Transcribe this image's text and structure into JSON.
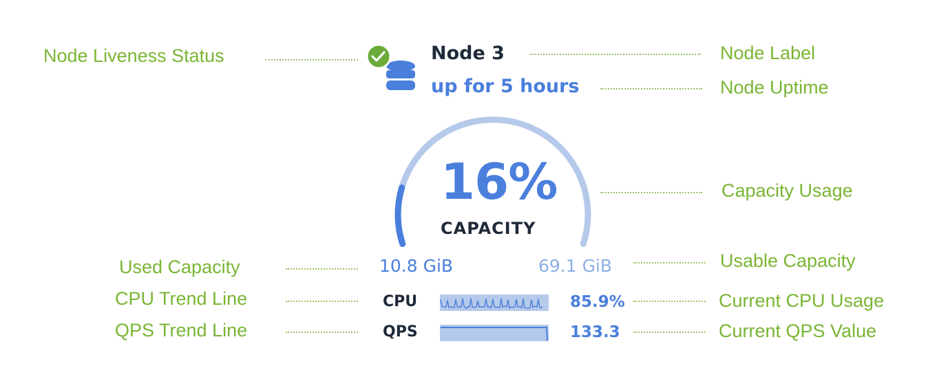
{
  "node": {
    "label": "Node 3",
    "uptime": "up for 5 hours",
    "liveness": "live",
    "icons": {
      "status": "check-circle-icon",
      "node": "database-icon"
    }
  },
  "capacity": {
    "percent_text": "16%",
    "percent": 16,
    "label": "CAPACITY",
    "used": "10.8 GiB",
    "usable": "69.1 GiB"
  },
  "metrics": {
    "cpu": {
      "label": "CPU",
      "value": "85.9%"
    },
    "qps": {
      "label": "QPS",
      "value": "133.3"
    }
  },
  "annotations": {
    "liveness": "Node Liveness Status",
    "label": "Node Label",
    "uptime": "Node Uptime",
    "capacity_usage": "Capacity Usage",
    "used_capacity": "Used Capacity",
    "usable_capacity": "Usable Capacity",
    "cpu_trend": "CPU Trend Line",
    "cpu_current": "Current CPU Usage",
    "qps_trend": "QPS Trend Line",
    "qps_current": "Current QPS Value"
  },
  "colors": {
    "accent": "#4a7fdc",
    "accent_light": "#b5c9ea",
    "annotation": "#7ab534",
    "live": "#6aab3a"
  }
}
